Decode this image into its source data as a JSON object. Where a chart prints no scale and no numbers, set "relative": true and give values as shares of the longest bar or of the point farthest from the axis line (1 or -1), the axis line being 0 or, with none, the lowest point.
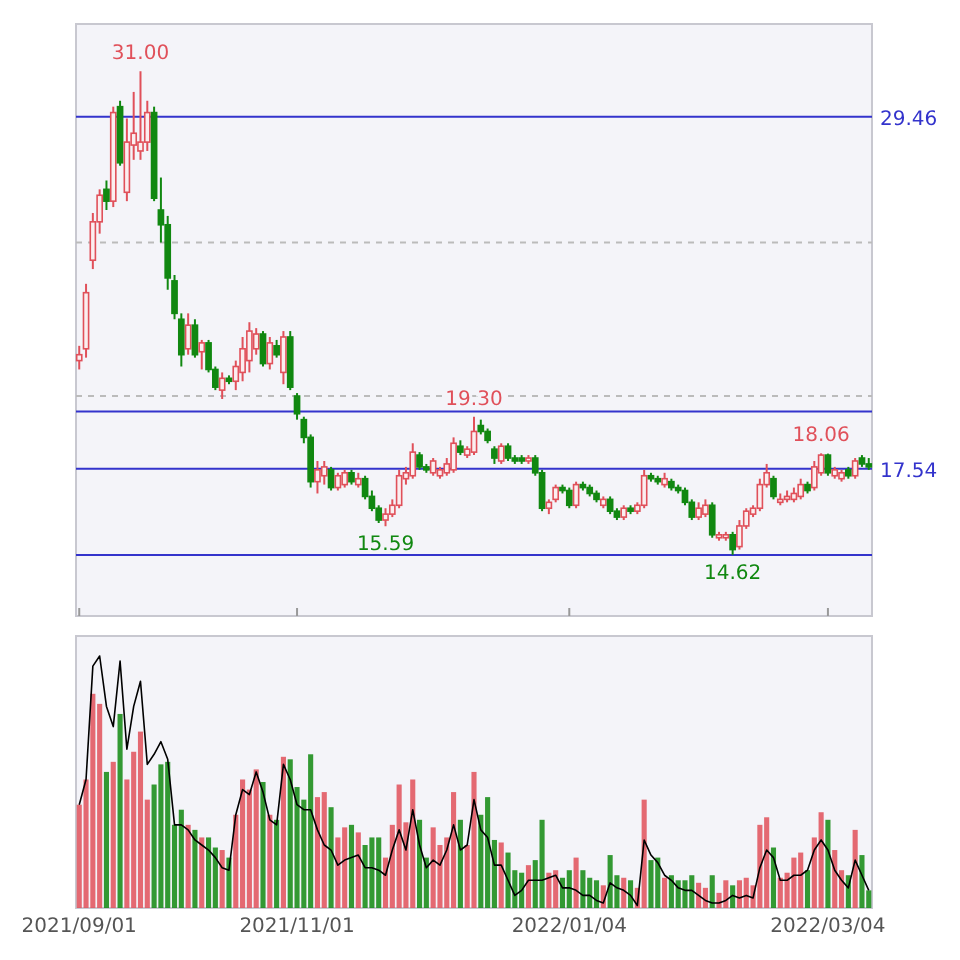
{
  "chart_data": [
    {
      "type": "candlestick",
      "tick_labels": false,
      "grid": "y",
      "ylim": [
        12.55,
        32.6
      ],
      "yticks": [
        {
          "value": 20.0,
          "label": null
        },
        {
          "value": 25.2,
          "label": null
        }
      ],
      "colors": [
        "#e0505a",
        "#e0505a",
        "#e0505a",
        "#e0505a",
        "#118811",
        "#e0505a",
        "#118811",
        "#e0505a",
        "#e0505a",
        "#e0505a",
        "#e0505a",
        "#118811",
        "#118811",
        "#118811",
        "#118811",
        "#118811",
        "#e0505a",
        "#118811",
        "#e0505a",
        "#118811",
        "#118811",
        "#e0505a",
        "#118811",
        "#e0505a",
        "#e0505a",
        "#e0505a",
        "#e0505a",
        "#118811",
        "#e0505a",
        "#118811",
        "#e0505a",
        "#118811",
        "#118811",
        "#118811",
        "#118811",
        "#e0505a",
        "#e0505a",
        "#118811",
        "#e0505a",
        "#e0505a",
        "#118811",
        "#e0505a",
        "#118811",
        "#118811",
        "#118811",
        "#e0505a",
        "#e0505a",
        "#e0505a",
        "#e0505a",
        "#e0505a",
        "#118811",
        "#118811",
        "#e0505a",
        "#e0505a",
        "#e0505a",
        "#e0505a",
        "#118811",
        "#e0505a",
        "#e0505a",
        "#118811",
        "#118811",
        "#118811",
        "#e0505a",
        "#118811",
        "#118811",
        "#118811",
        "#e0505a",
        "#118811",
        "#118811",
        "#e0505a",
        "#e0505a",
        "#118811",
        "#118811",
        "#e0505a",
        "#118811",
        "#118811",
        "#118811",
        "#e0505a",
        "#118811",
        "#118811",
        "#e0505a",
        "#118811",
        "#e0505a",
        "#e0505a",
        "#118811",
        "#118811",
        "#e0505a",
        "#118811",
        "#118811",
        "#118811",
        "#118811",
        "#e0505a",
        "#e0505a",
        "#118811",
        "#e0505a",
        "#e0505a",
        "#118811",
        "#e0505a",
        "#e0505a",
        "#e0505a",
        "#e0505a",
        "#e0505a",
        "#118811",
        "#e0505a",
        "#e0505a",
        "#e0505a",
        "#e0505a",
        "#118811",
        "#e0505a",
        "#e0505a",
        "#118811",
        "#e0505a",
        "#e0505a",
        "#118811",
        "#e0505a",
        "#118811",
        "#118811"
      ],
      "categories": [
        "2021/09/01",
        null,
        null,
        null,
        null,
        null,
        null,
        null,
        null,
        null,
        null,
        null,
        null,
        null,
        null,
        null,
        null,
        null,
        null,
        null,
        null,
        null,
        null,
        null,
        null,
        null,
        null,
        null,
        null,
        null,
        null,
        null,
        "2021/11/01",
        null,
        null,
        null,
        null,
        null,
        null,
        null,
        null,
        null,
        null,
        null,
        null,
        null,
        null,
        null,
        null,
        null,
        null,
        null,
        null,
        null,
        null,
        null,
        null,
        null,
        null,
        null,
        null,
        null,
        null,
        null,
        null,
        null,
        null,
        null,
        null,
        null,
        null,
        null,
        "2022/01/04",
        null,
        null,
        null,
        null,
        null,
        null,
        null,
        null,
        null,
        null,
        null,
        null,
        null,
        null,
        null,
        null,
        null,
        null,
        null,
        null,
        null,
        null,
        null,
        null,
        null,
        null,
        null,
        null,
        null,
        null,
        null,
        null,
        null,
        null,
        null,
        null,
        null,
        "2022/03/04",
        null,
        null,
        null,
        null,
        null,
        null
      ],
      "ohlc": [
        [
          21.2,
          21.7,
          20.9,
          21.4
        ],
        [
          21.6,
          23.8,
          21.3,
          23.5
        ],
        [
          24.6,
          26.2,
          24.3,
          25.9
        ],
        [
          25.9,
          27.0,
          25.5,
          26.8
        ],
        [
          27.0,
          27.3,
          26.3,
          26.6
        ],
        [
          26.6,
          29.8,
          26.4,
          29.6
        ],
        [
          29.8,
          30.0,
          27.8,
          27.9
        ],
        [
          26.9,
          29.4,
          26.6,
          28.6
        ],
        [
          28.5,
          30.3,
          28.0,
          28.9
        ],
        [
          28.3,
          31.0,
          28.0,
          28.6
        ],
        [
          28.6,
          30.0,
          28.3,
          29.6
        ],
        [
          29.6,
          29.8,
          26.6,
          26.7
        ],
        [
          26.3,
          27.4,
          25.2,
          25.8
        ],
        [
          25.8,
          26.1,
          23.6,
          24.0
        ],
        [
          23.9,
          24.1,
          22.6,
          22.8
        ],
        [
          22.6,
          22.8,
          21.0,
          21.4
        ],
        [
          21.6,
          22.8,
          21.4,
          22.4
        ],
        [
          22.4,
          22.6,
          21.3,
          21.4
        ],
        [
          21.5,
          21.9,
          20.9,
          21.8
        ],
        [
          21.8,
          21.9,
          20.8,
          20.9
        ],
        [
          20.9,
          21.0,
          20.2,
          20.3
        ],
        [
          20.2,
          20.8,
          19.9,
          20.6
        ],
        [
          20.6,
          20.7,
          20.4,
          20.5
        ],
        [
          20.5,
          21.2,
          20.2,
          21.0
        ],
        [
          20.8,
          22.0,
          20.5,
          21.6
        ],
        [
          21.2,
          22.5,
          20.8,
          22.2
        ],
        [
          21.6,
          22.3,
          21.4,
          22.1
        ],
        [
          22.1,
          22.2,
          21.0,
          21.1
        ],
        [
          21.1,
          22.0,
          20.9,
          21.8
        ],
        [
          21.7,
          21.9,
          21.3,
          21.4
        ],
        [
          20.8,
          22.2,
          20.4,
          22.0
        ],
        [
          22.0,
          22.2,
          20.2,
          20.3
        ],
        [
          20.0,
          20.1,
          19.2,
          19.4
        ],
        [
          19.2,
          19.3,
          18.4,
          18.6
        ],
        [
          18.6,
          18.7,
          16.9,
          17.1
        ],
        [
          17.1,
          17.8,
          16.7,
          17.5
        ],
        [
          17.3,
          17.8,
          17.0,
          17.6
        ],
        [
          17.5,
          17.6,
          16.8,
          16.9
        ],
        [
          16.9,
          17.4,
          16.8,
          17.3
        ],
        [
          17.0,
          17.5,
          16.9,
          17.4
        ],
        [
          17.4,
          17.5,
          17.0,
          17.1
        ],
        [
          17.0,
          17.4,
          16.9,
          17.2
        ],
        [
          17.2,
          17.3,
          16.5,
          16.6
        ],
        [
          16.6,
          16.8,
          16.1,
          16.2
        ],
        [
          16.2,
          16.3,
          15.7,
          15.8
        ],
        [
          15.8,
          16.2,
          15.59,
          16.0
        ],
        [
          16.0,
          16.5,
          15.9,
          16.3
        ],
        [
          16.3,
          17.5,
          16.2,
          17.3
        ],
        [
          17.2,
          17.6,
          17.0,
          17.4
        ],
        [
          17.3,
          18.4,
          17.2,
          18.1
        ],
        [
          18.0,
          18.1,
          17.5,
          17.6
        ],
        [
          17.6,
          17.7,
          17.4,
          17.5
        ],
        [
          17.4,
          17.9,
          17.3,
          17.8
        ],
        [
          17.3,
          17.6,
          17.2,
          17.5
        ],
        [
          17.4,
          17.9,
          17.3,
          17.7
        ],
        [
          17.5,
          18.6,
          17.4,
          18.4
        ],
        [
          18.3,
          18.5,
          18.0,
          18.1
        ],
        [
          18.0,
          18.3,
          17.9,
          18.2
        ],
        [
          18.1,
          19.3,
          18.0,
          18.8
        ],
        [
          19.0,
          19.2,
          18.7,
          18.8
        ],
        [
          18.8,
          18.9,
          18.4,
          18.5
        ],
        [
          18.2,
          18.3,
          17.7,
          17.9
        ],
        [
          17.8,
          18.4,
          17.7,
          18.3
        ],
        [
          18.3,
          18.4,
          17.8,
          17.9
        ],
        [
          17.9,
          18.0,
          17.7,
          17.8
        ],
        [
          17.9,
          18.0,
          17.7,
          17.8
        ],
        [
          17.8,
          18.0,
          17.7,
          17.9
        ],
        [
          17.9,
          18.0,
          17.3,
          17.4
        ],
        [
          17.4,
          17.5,
          16.1,
          16.2
        ],
        [
          16.2,
          16.5,
          16.0,
          16.4
        ],
        [
          16.5,
          17.0,
          16.4,
          16.9
        ],
        [
          16.9,
          17.0,
          16.7,
          16.8
        ],
        [
          16.8,
          16.9,
          16.2,
          16.3
        ],
        [
          16.3,
          17.1,
          16.2,
          17.0
        ],
        [
          17.0,
          17.1,
          16.8,
          16.9
        ],
        [
          16.9,
          17.0,
          16.6,
          16.7
        ],
        [
          16.7,
          16.8,
          16.4,
          16.5
        ],
        [
          16.3,
          16.6,
          16.2,
          16.5
        ],
        [
          16.5,
          16.6,
          16.0,
          16.1
        ],
        [
          16.1,
          16.2,
          15.8,
          15.9
        ],
        [
          15.9,
          16.3,
          15.8,
          16.2
        ],
        [
          16.2,
          16.3,
          16.0,
          16.1
        ],
        [
          16.1,
          16.4,
          16.0,
          16.3
        ],
        [
          16.3,
          17.5,
          16.2,
          17.3
        ],
        [
          17.3,
          17.4,
          17.1,
          17.2
        ],
        [
          17.2,
          17.3,
          17.0,
          17.1
        ],
        [
          17.0,
          17.4,
          16.9,
          17.2
        ],
        [
          17.1,
          17.2,
          16.8,
          16.9
        ],
        [
          16.9,
          17.0,
          16.7,
          16.8
        ],
        [
          16.8,
          16.9,
          16.3,
          16.4
        ],
        [
          16.4,
          16.5,
          15.8,
          15.9
        ],
        [
          15.9,
          16.4,
          15.8,
          16.2
        ],
        [
          16.0,
          16.5,
          15.9,
          16.3
        ],
        [
          16.3,
          16.4,
          15.2,
          15.3
        ],
        [
          15.2,
          15.4,
          15.1,
          15.3
        ],
        [
          15.2,
          15.4,
          15.1,
          15.3
        ],
        [
          15.3,
          15.4,
          14.62,
          14.8
        ],
        [
          14.9,
          15.8,
          14.8,
          15.6
        ],
        [
          15.6,
          16.2,
          15.5,
          16.1
        ],
        [
          16.0,
          16.3,
          15.9,
          16.2
        ],
        [
          16.2,
          17.2,
          16.1,
          17.0
        ],
        [
          17.0,
          17.7,
          16.9,
          17.4
        ],
        [
          17.2,
          17.3,
          16.5,
          16.6
        ],
        [
          16.4,
          16.7,
          16.3,
          16.5
        ],
        [
          16.5,
          16.8,
          16.4,
          16.6
        ],
        [
          16.5,
          16.9,
          16.4,
          16.7
        ],
        [
          16.6,
          17.2,
          16.5,
          17.0
        ],
        [
          17.0,
          17.1,
          16.7,
          16.8
        ],
        [
          16.9,
          17.8,
          16.8,
          17.6
        ],
        [
          17.4,
          18.06,
          17.3,
          18.0
        ],
        [
          18.0,
          18.05,
          17.3,
          17.4
        ],
        [
          17.3,
          17.6,
          17.2,
          17.5
        ],
        [
          17.2,
          17.5,
          17.1,
          17.4
        ],
        [
          17.5,
          17.6,
          17.2,
          17.3
        ],
        [
          17.3,
          17.9,
          17.2,
          17.8
        ],
        [
          17.9,
          18.0,
          17.6,
          17.7
        ],
        [
          17.7,
          17.9,
          17.5,
          17.6
        ]
      ],
      "value_labels": [
        null,
        null,
        null,
        null,
        null,
        null,
        null,
        null,
        null,
        "31.00",
        null,
        null,
        null,
        null,
        null,
        null,
        null,
        null,
        null,
        null,
        null,
        null,
        null,
        null,
        null,
        null,
        null,
        null,
        null,
        null,
        null,
        null,
        null,
        null,
        null,
        null,
        null,
        null,
        null,
        null,
        null,
        null,
        null,
        null,
        null,
        "15.59",
        null,
        null,
        null,
        null,
        null,
        null,
        null,
        null,
        null,
        null,
        null,
        null,
        "19.30",
        null,
        null,
        null,
        null,
        null,
        null,
        null,
        null,
        null,
        null,
        null,
        null,
        null,
        null,
        null,
        null,
        null,
        null,
        null,
        null,
        null,
        null,
        null,
        null,
        null,
        null,
        null,
        null,
        null,
        null,
        null,
        null,
        null,
        null,
        null,
        null,
        null,
        "14.62",
        null,
        null,
        null,
        null,
        null,
        null,
        null,
        null,
        null,
        null,
        null,
        null,
        "18.06",
        null,
        null,
        null,
        null,
        null,
        null,
        null
      ],
      "ref_lines": [
        {
          "axis": "y",
          "value": 29.46,
          "label": "29.46",
          "color": "#3333cc"
        },
        {
          "axis": "y",
          "value": 19.48,
          "color": "#3333cc"
        },
        {
          "axis": "y",
          "value": 17.54,
          "label": "17.54",
          "color": "#3333cc"
        },
        {
          "axis": "y",
          "value": 14.62,
          "color": "#3333cc"
        }
      ]
    },
    {
      "type": "bar",
      "relative": true,
      "tick_labels": "x",
      "categories": [
        "2021/09/01",
        null,
        null,
        null,
        null,
        null,
        null,
        null,
        null,
        null,
        null,
        null,
        null,
        null,
        null,
        null,
        null,
        null,
        null,
        null,
        null,
        null,
        null,
        null,
        null,
        null,
        null,
        null,
        null,
        null,
        null,
        null,
        "2021/11/01",
        null,
        null,
        null,
        null,
        null,
        null,
        null,
        null,
        null,
        null,
        null,
        null,
        null,
        null,
        null,
        null,
        null,
        null,
        null,
        null,
        null,
        null,
        null,
        null,
        null,
        null,
        null,
        null,
        null,
        null,
        null,
        null,
        null,
        null,
        null,
        null,
        null,
        null,
        null,
        "2022/01/04",
        null,
        null,
        null,
        null,
        null,
        null,
        null,
        null,
        null,
        null,
        null,
        null,
        null,
        null,
        null,
        null,
        null,
        null,
        null,
        null,
        null,
        null,
        null,
        null,
        null,
        null,
        null,
        null,
        null,
        null,
        null,
        null,
        null,
        null,
        null,
        null,
        null,
        "2022/03/04",
        null,
        null,
        null,
        null,
        null,
        null
      ],
      "series": [
        {
          "type": "bar",
          "values": [
            0.41,
            0.51,
            0.85,
            0.81,
            0.54,
            0.58,
            0.77,
            0.51,
            0.62,
            0.7,
            0.43,
            0.49,
            0.57,
            0.58,
            0.33,
            0.39,
            0.33,
            0.31,
            0.28,
            0.28,
            0.24,
            0.23,
            0.2,
            0.37,
            0.51,
            0.47,
            0.55,
            0.5,
            0.37,
            0.35,
            0.6,
            0.59,
            0.48,
            0.43,
            0.61,
            0.44,
            0.46,
            0.4,
            0.28,
            0.32,
            0.33,
            0.3,
            0.25,
            0.28,
            0.28,
            0.2,
            0.33,
            0.49,
            0.34,
            0.51,
            0.35,
            0.2,
            0.32,
            0.25,
            0.28,
            0.46,
            0.35,
            0.25,
            0.54,
            0.37,
            0.44,
            0.27,
            0.26,
            0.22,
            0.15,
            0.14,
            0.17,
            0.19,
            0.35,
            0.14,
            0.15,
            0.12,
            0.15,
            0.2,
            0.15,
            0.12,
            0.11,
            0.09,
            0.21,
            0.13,
            0.12,
            0.11,
            0.08,
            0.43,
            0.19,
            0.2,
            0.12,
            0.13,
            0.11,
            0.11,
            0.13,
            0.1,
            0.08,
            0.13,
            0.06,
            0.11,
            0.09,
            0.11,
            0.12,
            0.09,
            0.33,
            0.36,
            0.24,
            0.12,
            0.14,
            0.2,
            0.22,
            0.15,
            0.28,
            0.38,
            0.35,
            0.23,
            0.15,
            0.13,
            0.31,
            0.21,
            0.07
          ],
          "colors": [
            "#e0505a",
            "#e0505a",
            "#e0505a",
            "#e0505a",
            "#118811",
            "#e0505a",
            "#118811",
            "#e0505a",
            "#e0505a",
            "#e0505a",
            "#e0505a",
            "#118811",
            "#118811",
            "#118811",
            "#118811",
            "#118811",
            "#e0505a",
            "#118811",
            "#e0505a",
            "#118811",
            "#118811",
            "#e0505a",
            "#118811",
            "#e0505a",
            "#e0505a",
            "#e0505a",
            "#e0505a",
            "#118811",
            "#e0505a",
            "#118811",
            "#e0505a",
            "#118811",
            "#118811",
            "#118811",
            "#118811",
            "#e0505a",
            "#e0505a",
            "#118811",
            "#e0505a",
            "#e0505a",
            "#118811",
            "#e0505a",
            "#118811",
            "#118811",
            "#118811",
            "#e0505a",
            "#e0505a",
            "#e0505a",
            "#e0505a",
            "#e0505a",
            "#118811",
            "#118811",
            "#e0505a",
            "#e0505a",
            "#e0505a",
            "#e0505a",
            "#118811",
            "#e0505a",
            "#e0505a",
            "#118811",
            "#118811",
            "#118811",
            "#e0505a",
            "#118811",
            "#118811",
            "#118811",
            "#e0505a",
            "#118811",
            "#118811",
            "#e0505a",
            "#e0505a",
            "#118811",
            "#118811",
            "#e0505a",
            "#118811",
            "#118811",
            "#118811",
            "#e0505a",
            "#118811",
            "#118811",
            "#e0505a",
            "#118811",
            "#e0505a",
            "#e0505a",
            "#118811",
            "#118811",
            "#e0505a",
            "#118811",
            "#118811",
            "#118811",
            "#118811",
            "#e0505a",
            "#e0505a",
            "#118811",
            "#e0505a",
            "#e0505a",
            "#118811",
            "#e0505a",
            "#e0505a",
            "#e0505a",
            "#e0505a",
            "#e0505a",
            "#118811",
            "#e0505a",
            "#e0505a",
            "#e0505a",
            "#e0505a",
            "#118811",
            "#e0505a",
            "#e0505a",
            "#118811",
            "#e0505a",
            "#e0505a",
            "#118811",
            "#e0505a",
            "#118811",
            "#118811"
          ]
        },
        {
          "type": "line",
          "color": "#000000",
          "values": [
            0.41,
            0.51,
            0.96,
            1.0,
            0.8,
            0.72,
            0.98,
            0.63,
            0.8,
            0.9,
            0.57,
            0.61,
            0.66,
            0.59,
            0.33,
            0.33,
            0.31,
            0.27,
            0.25,
            0.23,
            0.2,
            0.16,
            0.15,
            0.37,
            0.47,
            0.45,
            0.54,
            0.46,
            0.35,
            0.33,
            0.57,
            0.51,
            0.41,
            0.39,
            0.39,
            0.31,
            0.25,
            0.23,
            0.17,
            0.19,
            0.2,
            0.21,
            0.16,
            0.16,
            0.15,
            0.13,
            0.23,
            0.31,
            0.23,
            0.39,
            0.25,
            0.16,
            0.19,
            0.17,
            0.23,
            0.33,
            0.23,
            0.25,
            0.43,
            0.31,
            0.28,
            0.17,
            0.17,
            0.11,
            0.05,
            0.07,
            0.11,
            0.11,
            0.11,
            0.12,
            0.13,
            0.08,
            0.08,
            0.07,
            0.05,
            0.05,
            0.03,
            0.02,
            0.1,
            0.08,
            0.07,
            0.05,
            0.01,
            0.27,
            0.21,
            0.18,
            0.13,
            0.11,
            0.08,
            0.07,
            0.07,
            0.05,
            0.03,
            0.02,
            0.02,
            0.03,
            0.05,
            0.04,
            0.05,
            0.04,
            0.16,
            0.23,
            0.2,
            0.11,
            0.11,
            0.13,
            0.13,
            0.15,
            0.23,
            0.27,
            0.23,
            0.15,
            0.11,
            0.08,
            0.19,
            0.13,
            0.07
          ]
        }
      ]
    }
  ]
}
